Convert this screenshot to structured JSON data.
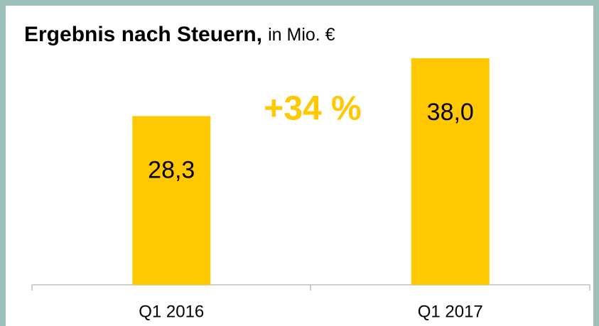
{
  "chart_data": {
    "type": "bar",
    "title": "Ergebnis nach Steuern,",
    "subtitle": "in Mio. €",
    "categories": [
      "Q1 2016",
      "Q1 2017"
    ],
    "values": [
      28.3,
      38.0
    ],
    "value_labels": [
      "28,3",
      "38,0"
    ],
    "color": "#ffc800",
    "annotation": "+34 %"
  }
}
